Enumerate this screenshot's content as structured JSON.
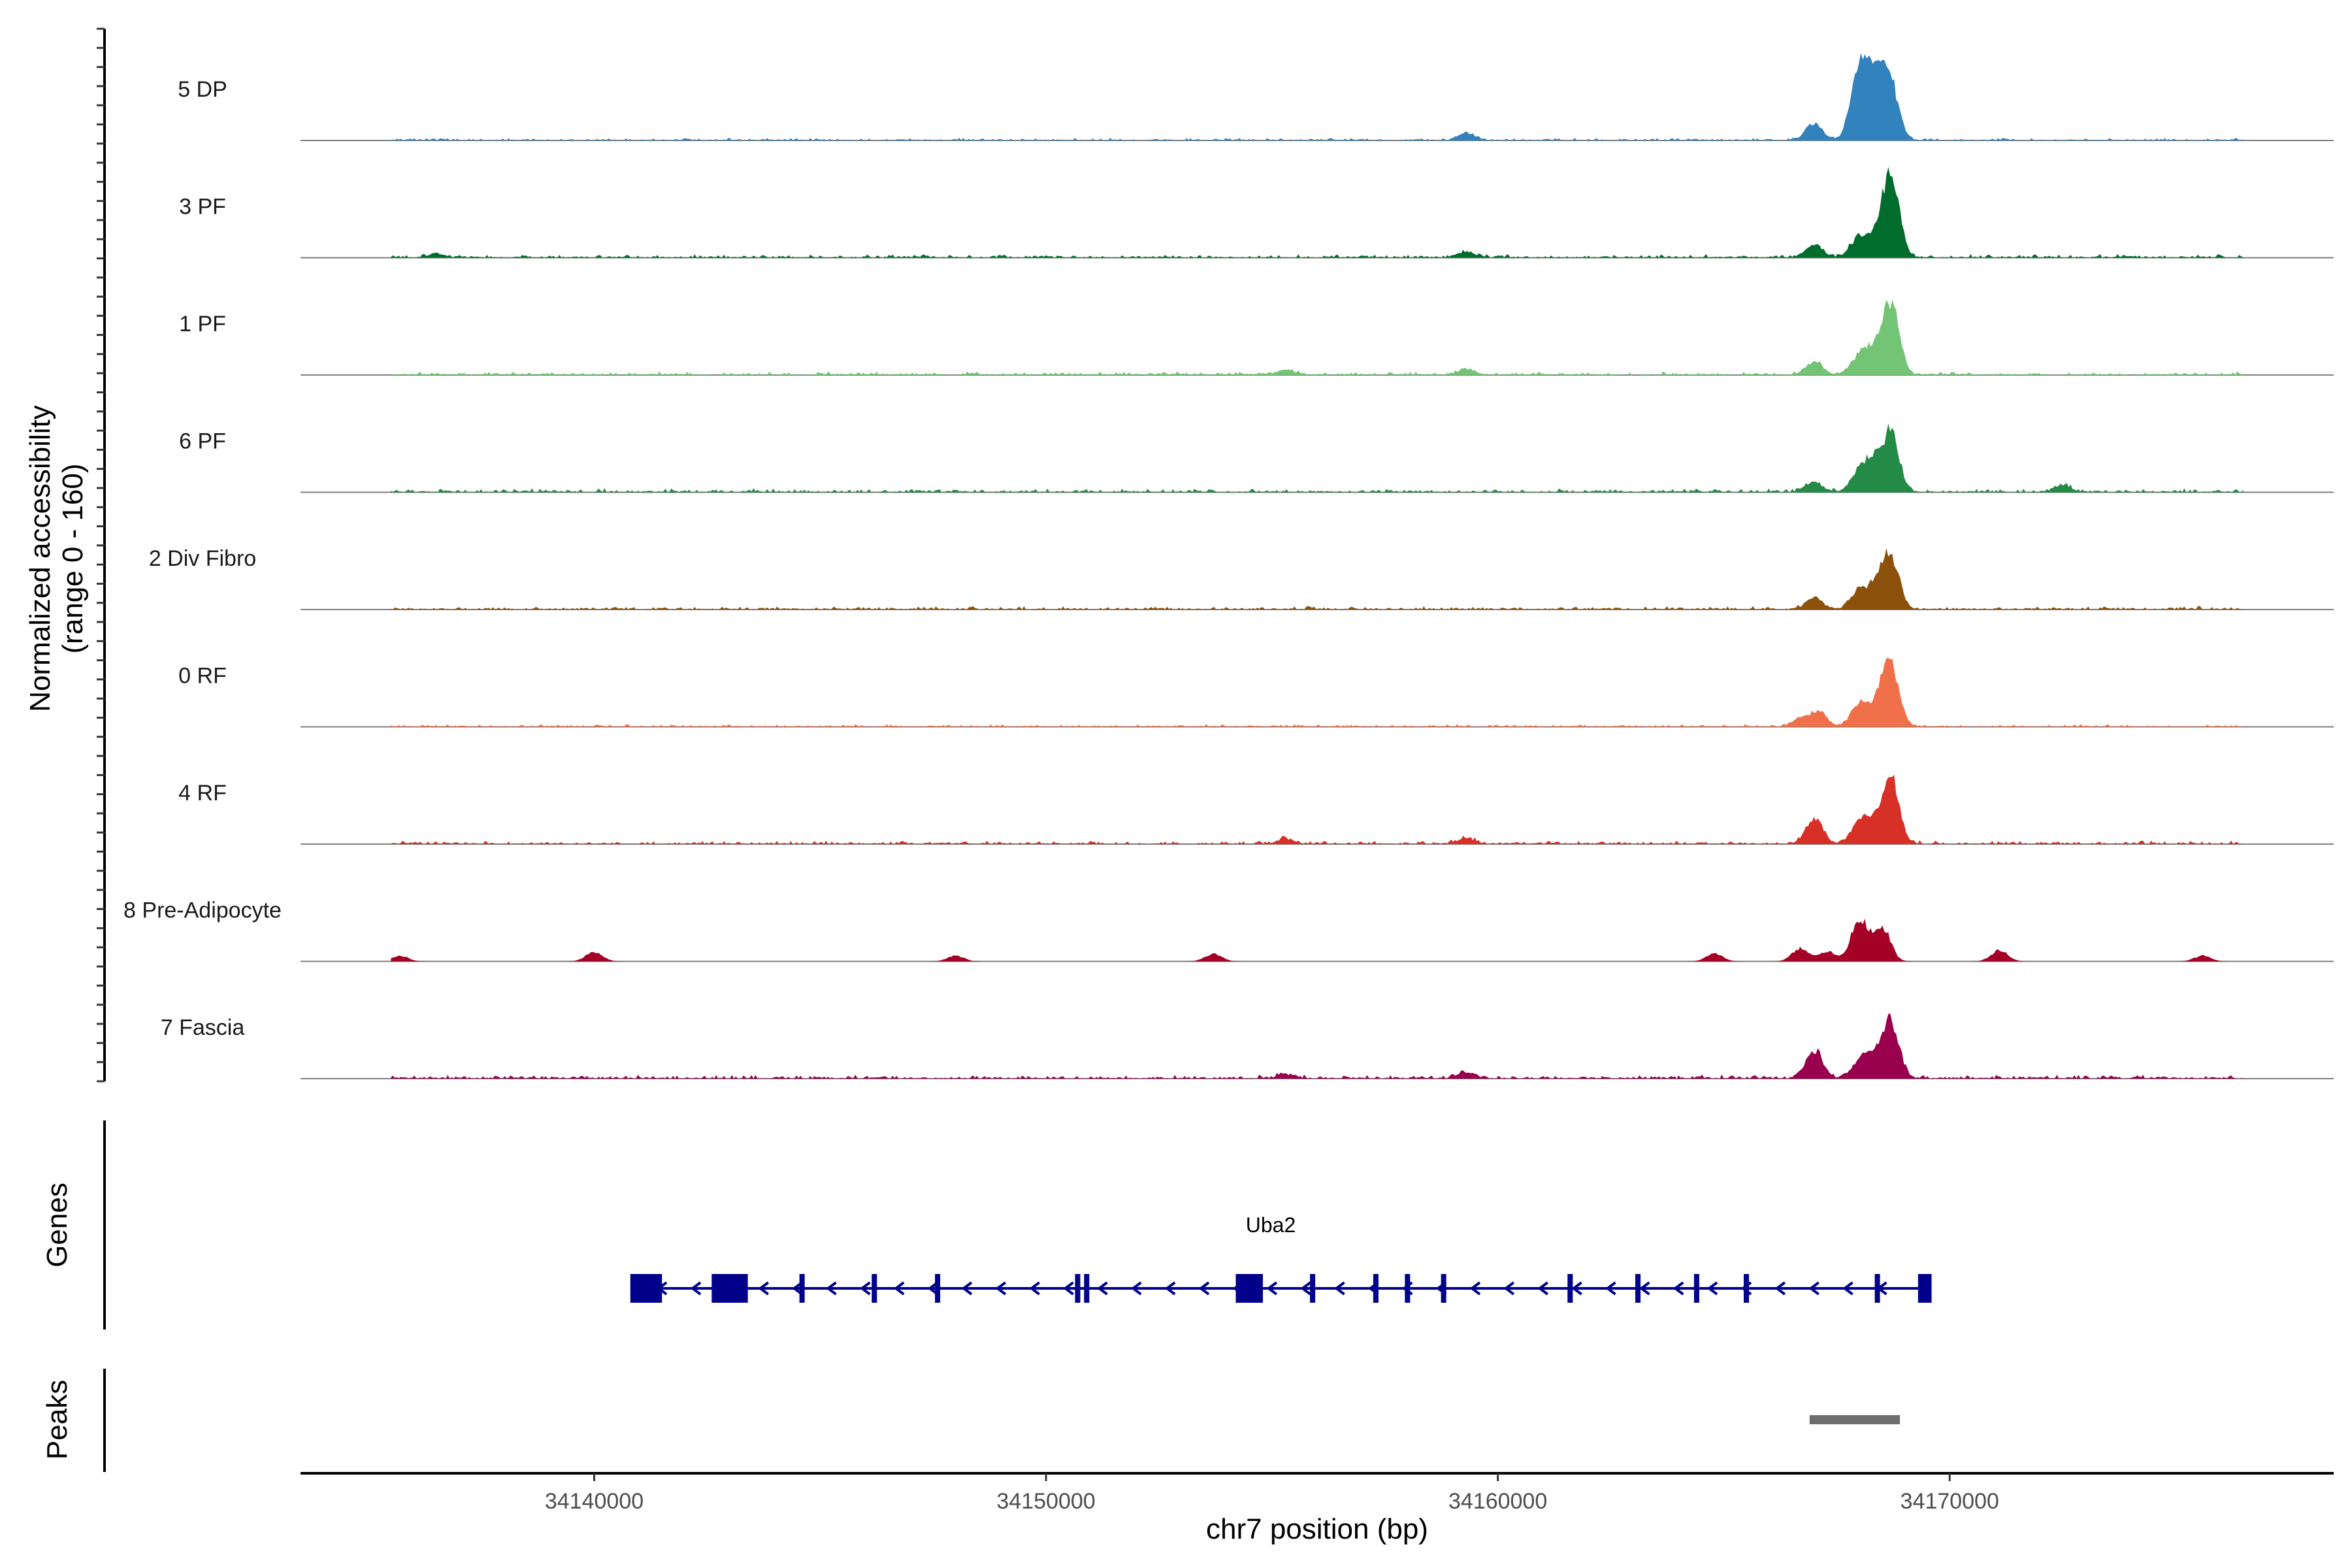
{
  "chart_data": {
    "type": "area",
    "title": "",
    "xlabel": "chr7 position (bp)",
    "ylabel_line1": "Normalized accessibility",
    "ylabel_line2": "(range 0 - 160)",
    "y_range": [
      0,
      160
    ],
    "x_range": [
      34133500,
      34178500
    ],
    "x_ticks": [
      34140000,
      34150000,
      34160000,
      34170000
    ],
    "x_tick_labels": [
      "34140000",
      "34150000",
      "34160000",
      "34170000"
    ],
    "tracks": [
      {
        "name": "5 DP",
        "color": "#3182bd",
        "peaks": [
          [
            34159300,
            8
          ],
          [
            34167000,
            18
          ],
          [
            34168000,
            75
          ],
          [
            34168300,
            45
          ],
          [
            34168500,
            28
          ],
          [
            34168700,
            50
          ]
        ],
        "noise": 1.2
      },
      {
        "name": "3 PF",
        "color": "#006d2c",
        "peaks": [
          [
            34136500,
            4
          ],
          [
            34159300,
            6
          ],
          [
            34167000,
            14
          ],
          [
            34168000,
            22
          ],
          [
            34168400,
            18
          ],
          [
            34168700,
            85
          ]
        ],
        "noise": 1.6
      },
      {
        "name": "1 PF",
        "color": "#74c476",
        "peaks": [
          [
            34155300,
            5
          ],
          [
            34159300,
            6
          ],
          [
            34167000,
            14
          ],
          [
            34168000,
            18
          ],
          [
            34168300,
            22
          ],
          [
            34168700,
            75
          ]
        ],
        "noise": 1.6
      },
      {
        "name": "6 PF",
        "color": "#238b45",
        "peaks": [
          [
            34167000,
            10
          ],
          [
            34168000,
            20
          ],
          [
            34168300,
            28
          ],
          [
            34168700,
            62
          ],
          [
            34172500,
            7
          ]
        ],
        "noise": 1.8
      },
      {
        "name": "2 Div Fibro",
        "color": "#8c510a",
        "peaks": [
          [
            34167000,
            12
          ],
          [
            34168000,
            20
          ],
          [
            34168400,
            22
          ],
          [
            34168700,
            55
          ]
        ],
        "noise": 1.6
      },
      {
        "name": "0 RF",
        "color": "#f0704a",
        "peaks": [
          [
            34166700,
            8
          ],
          [
            34167100,
            16
          ],
          [
            34168000,
            24
          ],
          [
            34168400,
            20
          ],
          [
            34168700,
            65
          ]
        ],
        "noise": 1.2
      },
      {
        "name": "4 RF",
        "color": "#d73027",
        "peaks": [
          [
            34155300,
            5
          ],
          [
            34159300,
            6
          ],
          [
            34167000,
            28
          ],
          [
            34168000,
            22
          ],
          [
            34168300,
            20
          ],
          [
            34168700,
            68
          ]
        ],
        "noise": 1.6
      },
      {
        "name": "8 Pre-Adipocyte",
        "color": "#a50026",
        "peaks": [
          [
            34135700,
            6
          ],
          [
            34140000,
            10
          ],
          [
            34148000,
            6
          ],
          [
            34153700,
            8
          ],
          [
            34164800,
            8
          ],
          [
            34166700,
            14
          ],
          [
            34167300,
            10
          ],
          [
            34168000,
            45
          ],
          [
            34168500,
            38
          ],
          [
            34171100,
            12
          ],
          [
            34175600,
            6
          ]
        ],
        "noise": 0.0
      },
      {
        "name": "7 Fascia",
        "color": "#99004d",
        "peaks": [
          [
            34155300,
            4
          ],
          [
            34159300,
            6
          ],
          [
            34167000,
            30
          ],
          [
            34168000,
            16
          ],
          [
            34168300,
            22
          ],
          [
            34168700,
            60
          ]
        ],
        "noise": 1.8
      }
    ],
    "gene_track": {
      "label": "Genes",
      "gene_name": "Uba2",
      "strand": "-",
      "start": 34140800,
      "end": 34169600,
      "big_exons": [
        [
          34140800,
          34141500
        ],
        [
          34142600,
          34143400
        ],
        [
          34154200,
          34154800
        ],
        [
          34169300,
          34169600
        ]
      ],
      "small_exons": [
        34144600,
        34146200,
        34147600,
        34150700,
        34150900,
        34155900,
        34157300,
        34158000,
        34158800,
        34161600,
        34163100,
        34164400,
        34165500,
        34168400
      ],
      "color": "#00008b"
    },
    "peak_track": {
      "label": "Peaks",
      "ranges": [
        [
          34166900,
          34168900
        ]
      ],
      "color": "#6e6e6e"
    }
  }
}
